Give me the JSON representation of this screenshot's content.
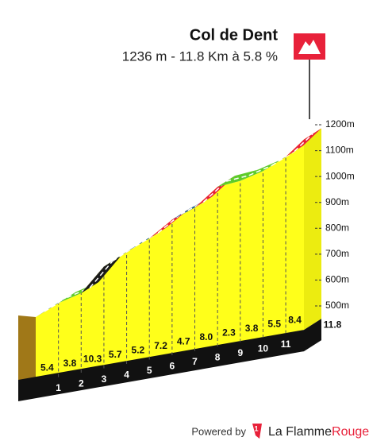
{
  "chart_data": {
    "type": "profile",
    "title": "Col de Dent",
    "subtitle": "1236 m - 11.8 Km à 5.8 %",
    "x": [
      1,
      2,
      3,
      4,
      5,
      6,
      7,
      8,
      9,
      10,
      11,
      11.8
    ],
    "values": [
      5.4,
      3.8,
      10.3,
      5.7,
      5.2,
      7.2,
      4.7,
      8.0,
      2.3,
      3.8,
      5.5,
      8.4
    ],
    "value_labels": [
      "5.4",
      "3.8",
      "10.3",
      "5.7",
      "5.2",
      "7.2",
      "4.7",
      "8.0",
      "2.3",
      "3.8",
      "5.5",
      "8.4"
    ],
    "colors": [
      "#1f5f8b",
      "#5ecb2b",
      "#1a1a1a",
      "#1f5f8b",
      "#1f5f8b",
      "#e8213a",
      "#1f5f8b",
      "#e8213a",
      "#5ecb2b",
      "#5ecb2b",
      "#1f5f8b",
      "#e8213a"
    ],
    "xlim": [
      0,
      11.8
    ],
    "ylim": [
      500,
      1200
    ],
    "yticks": [
      {
        "value": 500,
        "label": "500m"
      },
      {
        "value": 600,
        "label": "600m"
      },
      {
        "value": 700,
        "label": "700m"
      },
      {
        "value": 800,
        "label": "800m"
      },
      {
        "value": 900,
        "label": "900m"
      },
      {
        "value": 1000,
        "label": "1000m"
      },
      {
        "value": 1100,
        "label": "1100m"
      },
      {
        "value": 1200,
        "label": "1200m"
      }
    ],
    "footer": {
      "powered": "Powered by",
      "brand": "La Flamme",
      "brand_accent": "Rouge"
    }
  }
}
